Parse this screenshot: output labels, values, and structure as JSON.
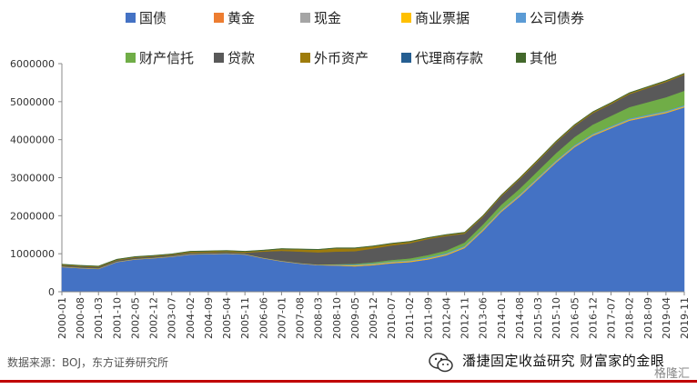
{
  "chart_data": {
    "type": "area",
    "stacked": true,
    "x_labels": [
      "2000-01",
      "2000-08",
      "2001-03",
      "2001-10",
      "2002-05",
      "2002-12",
      "2003-07",
      "2004-02",
      "2004-09",
      "2005-04",
      "2005-11",
      "2006-06",
      "2007-01",
      "2007-08",
      "2008-03",
      "2008-10",
      "2009-05",
      "2009-12",
      "2010-07",
      "2011-02",
      "2011-09",
      "2012-04",
      "2012-11",
      "2013-06",
      "2014-01",
      "2014-08",
      "2015-03",
      "2015-10",
      "2016-05",
      "2016-12",
      "2017-07",
      "2018-02",
      "2018-09",
      "2019-04",
      "2019-11"
    ],
    "ylim": [
      0,
      6000000
    ],
    "y_ticks": [
      "0",
      "1000000",
      "2000000",
      "3000000",
      "4000000",
      "5000000",
      "6000000"
    ],
    "legend_position": "top",
    "series": [
      {
        "name": "国债",
        "color": "#4472c4",
        "values": [
          650000,
          620000,
          600000,
          780000,
          850000,
          880000,
          920000,
          980000,
          990000,
          1000000,
          980000,
          880000,
          800000,
          740000,
          700000,
          690000,
          670000,
          700000,
          750000,
          780000,
          850000,
          960000,
          1150000,
          1600000,
          2100000,
          2500000,
          2950000,
          3400000,
          3800000,
          4100000,
          4300000,
          4500000,
          4600000,
          4700000,
          4850000
        ]
      },
      {
        "name": "黄金",
        "color": "#ed7d31",
        "values": [
          2000,
          2000,
          2000,
          2000,
          2000,
          2000,
          2000,
          2000,
          2000,
          2000,
          2000,
          2000,
          2000,
          2000,
          2000,
          2000,
          2000,
          2000,
          2000,
          2000,
          2000,
          2000,
          2000,
          2000,
          2000,
          2000,
          2000,
          2000,
          2000,
          2000,
          2000,
          2000,
          2000,
          2000,
          2000
        ]
      },
      {
        "name": "现金",
        "color": "#a5a5a5",
        "values": [
          5000,
          5000,
          5000,
          5000,
          5000,
          5000,
          5000,
          5000,
          5000,
          5000,
          5000,
          5000,
          5000,
          5000,
          5000,
          5000,
          5000,
          5000,
          5000,
          5000,
          5000,
          5000,
          5000,
          5000,
          5000,
          5000,
          5000,
          5000,
          5000,
          5000,
          5000,
          5000,
          5000,
          5000,
          5000
        ]
      },
      {
        "name": "商业票据",
        "color": "#ffc000",
        "values": [
          5000,
          5000,
          5000,
          5000,
          5000,
          5000,
          5000,
          5000,
          5000,
          5000,
          5000,
          5000,
          5000,
          5000,
          5000,
          10000,
          20000,
          20000,
          20000,
          20000,
          20000,
          20000,
          20000,
          20000,
          20000,
          20000,
          20000,
          20000,
          20000,
          20000,
          20000,
          20000,
          20000,
          20000,
          20000
        ]
      },
      {
        "name": "公司债券",
        "color": "#5b9bd5",
        "values": [
          5000,
          5000,
          5000,
          5000,
          5000,
          5000,
          5000,
          5000,
          5000,
          5000,
          5000,
          5000,
          5000,
          5000,
          5000,
          10000,
          20000,
          20000,
          20000,
          20000,
          30000,
          30000,
          30000,
          30000,
          30000,
          30000,
          30000,
          30000,
          30000,
          30000,
          30000,
          30000,
          30000,
          30000,
          30000
        ]
      },
      {
        "name": "财产信托",
        "color": "#70ad47",
        "values": [
          0,
          0,
          0,
          0,
          0,
          0,
          0,
          0,
          0,
          0,
          0,
          0,
          0,
          0,
          0,
          10000,
          20000,
          30000,
          40000,
          50000,
          60000,
          70000,
          90000,
          110000,
          130000,
          150000,
          170000,
          190000,
          210000,
          240000,
          270000,
          300000,
          330000,
          360000,
          380000
        ]
      },
      {
        "name": "贷款",
        "color": "#595959",
        "values": [
          30000,
          30000,
          30000,
          30000,
          30000,
          30000,
          30000,
          30000,
          30000,
          30000,
          30000,
          160000,
          260000,
          300000,
          320000,
          330000,
          330000,
          360000,
          380000,
          400000,
          420000,
          380000,
          230000,
          200000,
          220000,
          250000,
          260000,
          280000,
          290000,
          300000,
          310000,
          340000,
          370000,
          400000,
          420000
        ]
      },
      {
        "name": "外币资产",
        "color": "#9e7c0c",
        "values": [
          20000,
          20000,
          20000,
          20000,
          20000,
          20000,
          20000,
          30000,
          30000,
          30000,
          30000,
          30000,
          50000,
          60000,
          70000,
          90000,
          80000,
          60000,
          50000,
          40000,
          30000,
          30000,
          30000,
          30000,
          30000,
          30000,
          30000,
          30000,
          30000,
          30000,
          30000,
          30000,
          30000,
          30000,
          30000
        ]
      },
      {
        "name": "代理商存款",
        "color": "#255e91",
        "values": [
          0,
          0,
          0,
          0,
          0,
          0,
          0,
          0,
          0,
          0,
          0,
          0,
          0,
          0,
          0,
          0,
          0,
          0,
          0,
          0,
          0,
          0,
          0,
          0,
          0,
          0,
          0,
          0,
          0,
          0,
          0,
          0,
          0,
          0,
          0
        ]
      },
      {
        "name": "其他",
        "color": "#43682b",
        "values": [
          10000,
          10000,
          10000,
          10000,
          10000,
          10000,
          10000,
          10000,
          10000,
          10000,
          10000,
          10000,
          10000,
          10000,
          10000,
          10000,
          10000,
          10000,
          10000,
          10000,
          10000,
          10000,
          10000,
          10000,
          10000,
          10000,
          10000,
          10000,
          10000,
          10000,
          10000,
          10000,
          10000,
          10000,
          10000
        ]
      }
    ]
  },
  "source_text": "数据来源：BOJ，东方证券研究所",
  "watermark": {
    "text": "潘捷固定收益研究 财富家的金眼",
    "logo": "格隆汇",
    "icon": "wechat-icon"
  }
}
